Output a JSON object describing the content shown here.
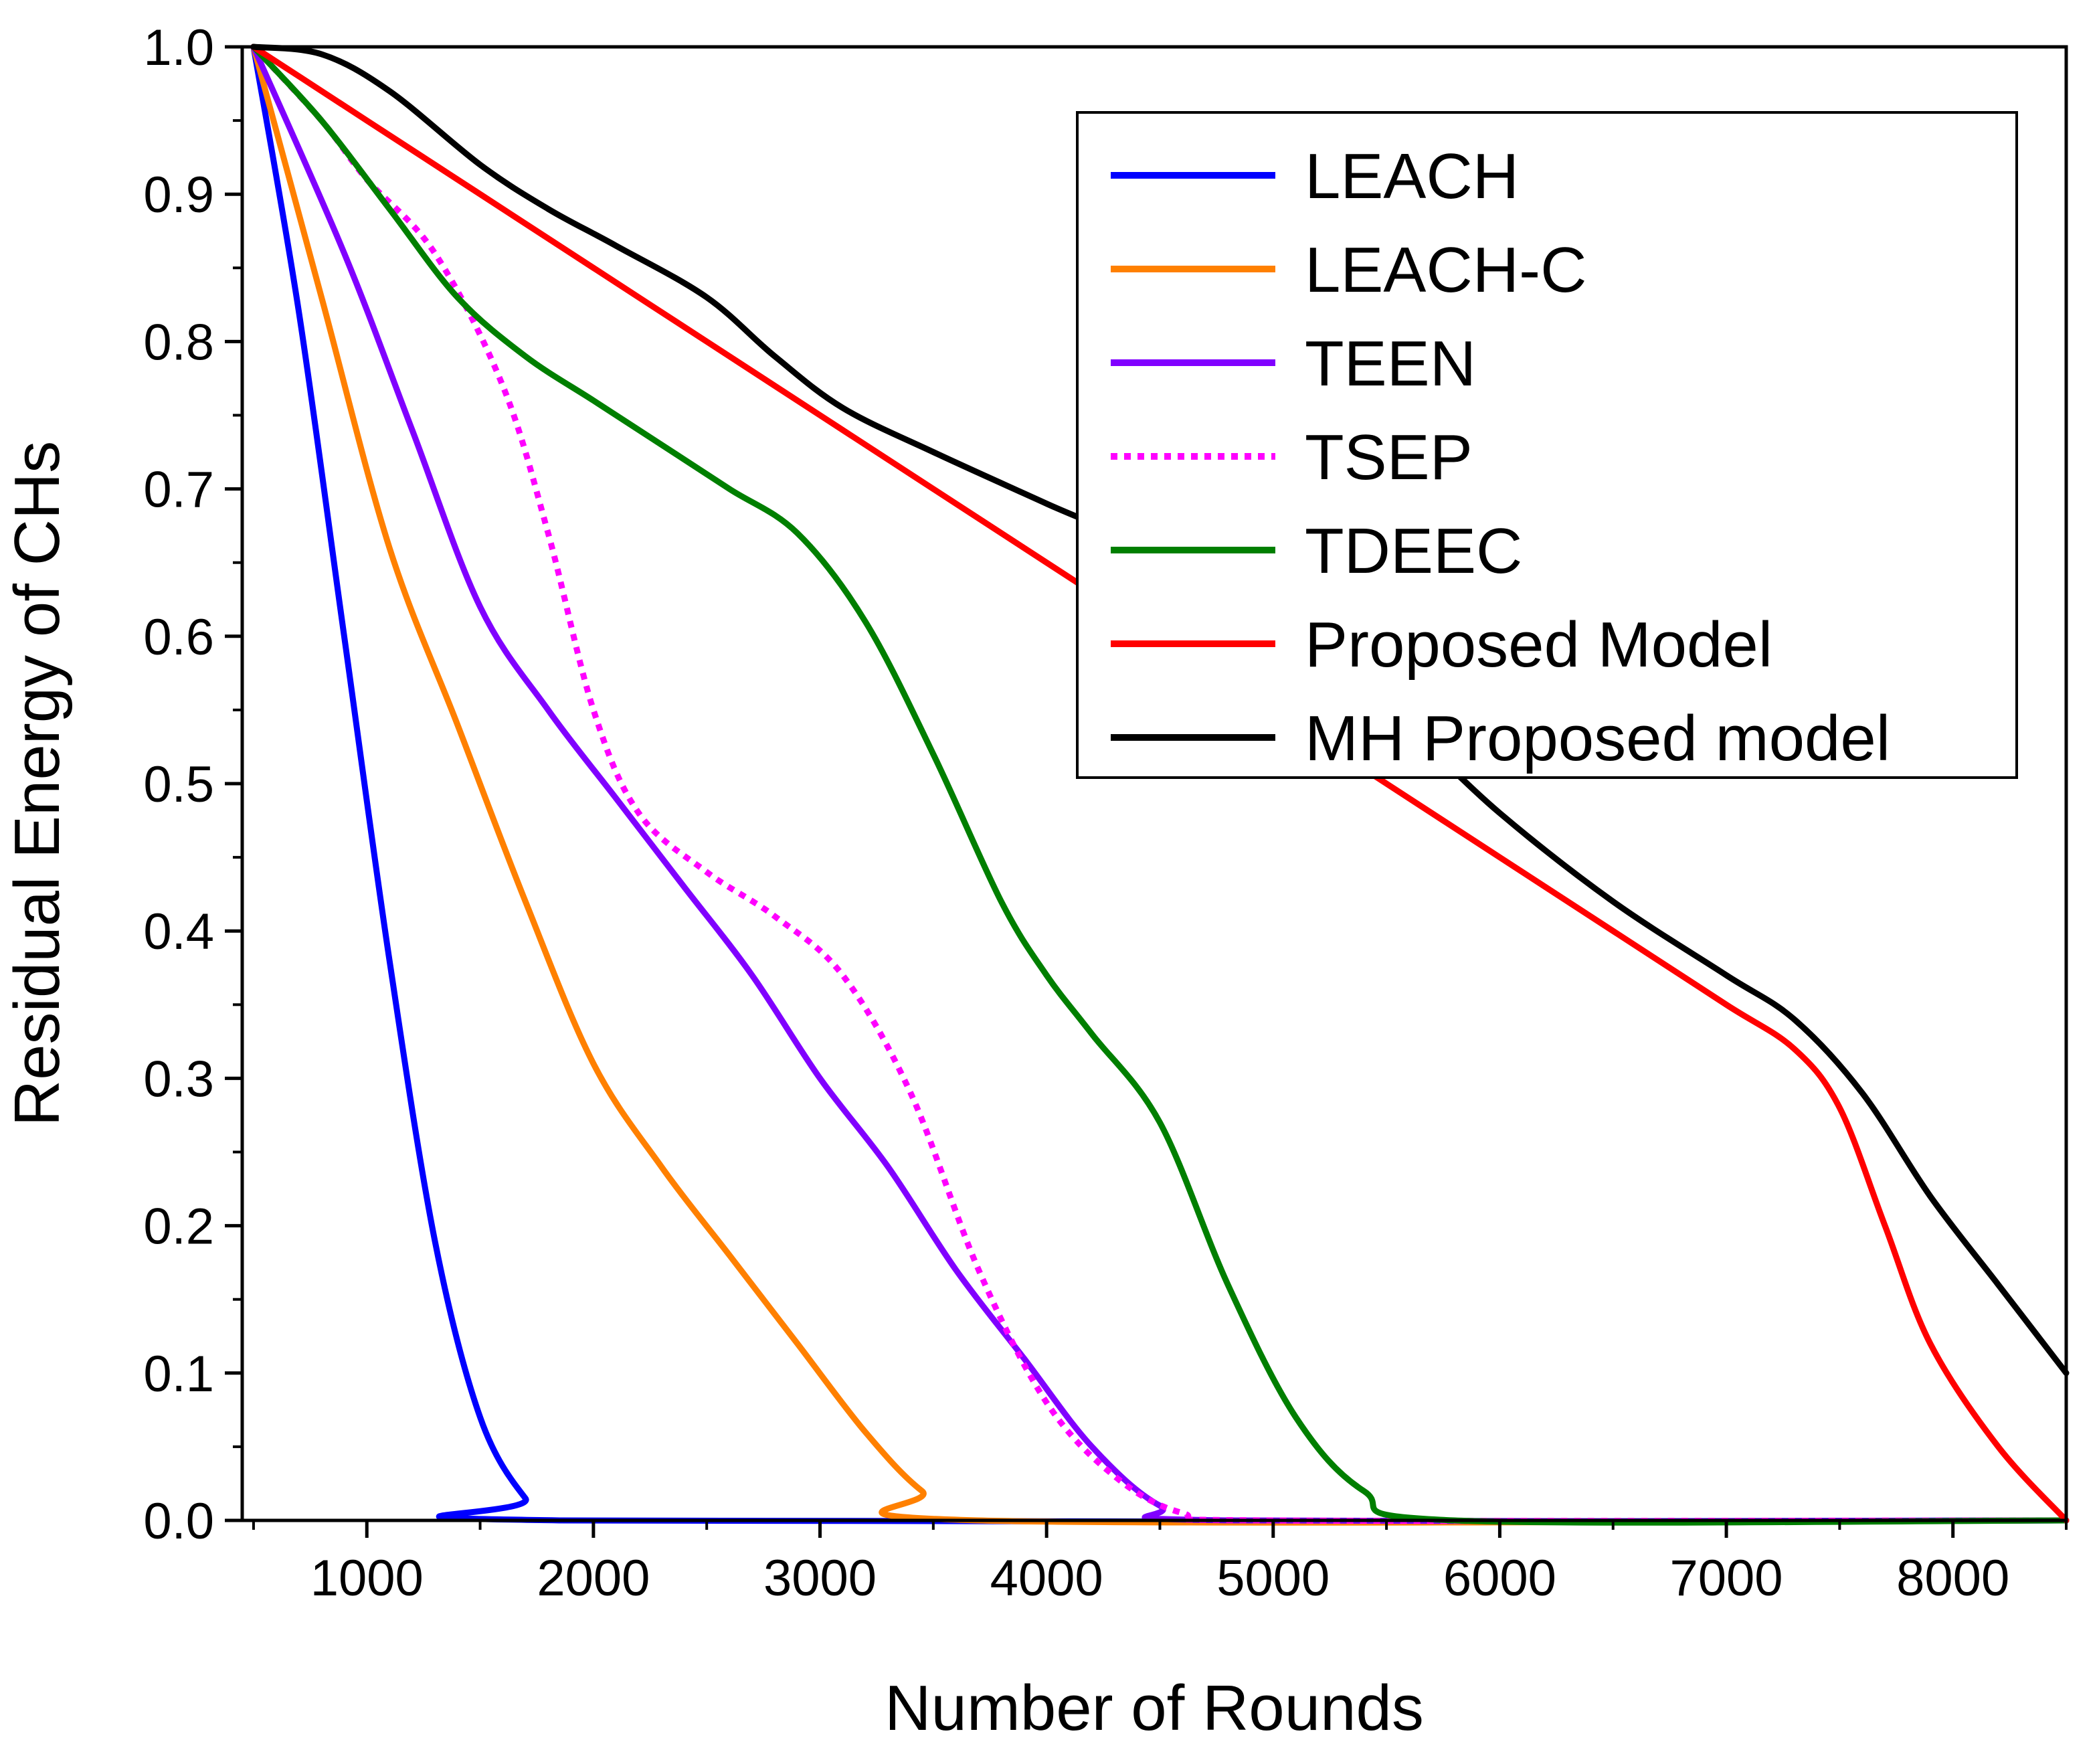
{
  "chart_data": {
    "type": "line",
    "title": "",
    "xlabel": "Number of Rounds",
    "ylabel": "Residual Energy of CHs",
    "xlim": [
      450,
      8500
    ],
    "ylim": [
      0.0,
      1.0
    ],
    "x_ticks": [
      1000,
      2000,
      3000,
      4000,
      5000,
      6000,
      7000,
      8000
    ],
    "x_tick_labels": [
      "1000",
      "2000",
      "3000",
      "4000",
      "5000",
      "6000",
      "7000",
      "8000"
    ],
    "y_ticks": [
      0.0,
      0.1,
      0.2,
      0.3,
      0.4,
      0.5,
      0.6,
      0.7,
      0.8,
      0.9,
      1.0
    ],
    "y_tick_labels": [
      "0.0",
      "0.1",
      "0.2",
      "0.3",
      "0.4",
      "0.5",
      "0.6",
      "0.7",
      "0.8",
      "0.9",
      "1.0"
    ],
    "grid": false,
    "legend_position": "top-right",
    "series": [
      {
        "name": "LEACH",
        "color": "#0000ff",
        "style": "solid",
        "points": [
          [
            500,
            1.0
          ],
          [
            700,
            0.82
          ],
          [
            900,
            0.6
          ],
          [
            1100,
            0.38
          ],
          [
            1300,
            0.19
          ],
          [
            1500,
            0.07
          ],
          [
            1700,
            0.015
          ],
          [
            1850,
            0.0
          ],
          [
            8500,
            0.0
          ]
        ]
      },
      {
        "name": "LEACH-C",
        "color": "#ff8000",
        "style": "solid",
        "points": [
          [
            500,
            1.0
          ],
          [
            800,
            0.83
          ],
          [
            1100,
            0.66
          ],
          [
            1400,
            0.54
          ],
          [
            1700,
            0.42
          ],
          [
            2000,
            0.31
          ],
          [
            2300,
            0.24
          ],
          [
            2600,
            0.18
          ],
          [
            2900,
            0.12
          ],
          [
            3200,
            0.06
          ],
          [
            3450,
            0.02
          ],
          [
            3700,
            0.0
          ],
          [
            8500,
            0.0
          ]
        ]
      },
      {
        "name": "TEEN",
        "color": "#8000ff",
        "style": "solid",
        "points": [
          [
            500,
            1.0
          ],
          [
            900,
            0.86
          ],
          [
            1200,
            0.74
          ],
          [
            1500,
            0.62
          ],
          [
            1800,
            0.55
          ],
          [
            2100,
            0.49
          ],
          [
            2400,
            0.43
          ],
          [
            2700,
            0.37
          ],
          [
            3000,
            0.3
          ],
          [
            3300,
            0.24
          ],
          [
            3600,
            0.17
          ],
          [
            3900,
            0.11
          ],
          [
            4200,
            0.05
          ],
          [
            4500,
            0.01
          ],
          [
            4800,
            0.0
          ],
          [
            8500,
            0.0
          ]
        ]
      },
      {
        "name": "TSEP",
        "color": "#ff00ff",
        "style": "dotted",
        "points": [
          [
            500,
            1.0
          ],
          [
            800,
            0.95
          ],
          [
            1000,
            0.91
          ],
          [
            1300,
            0.86
          ],
          [
            1600,
            0.77
          ],
          [
            1800,
            0.67
          ],
          [
            2000,
            0.55
          ],
          [
            2200,
            0.48
          ],
          [
            2500,
            0.44
          ],
          [
            2800,
            0.41
          ],
          [
            3100,
            0.37
          ],
          [
            3400,
            0.29
          ],
          [
            3700,
            0.17
          ],
          [
            4000,
            0.08
          ],
          [
            4300,
            0.03
          ],
          [
            4600,
            0.005
          ],
          [
            5000,
            0.0
          ],
          [
            8500,
            0.0
          ]
        ]
      },
      {
        "name": "TDEEC",
        "color": "#007f00",
        "style": "solid",
        "points": [
          [
            500,
            1.0
          ],
          [
            800,
            0.95
          ],
          [
            1100,
            0.89
          ],
          [
            1400,
            0.83
          ],
          [
            1700,
            0.79
          ],
          [
            2000,
            0.76
          ],
          [
            2300,
            0.73
          ],
          [
            2600,
            0.7
          ],
          [
            2900,
            0.67
          ],
          [
            3200,
            0.61
          ],
          [
            3500,
            0.52
          ],
          [
            3800,
            0.42
          ],
          [
            4000,
            0.37
          ],
          [
            4200,
            0.33
          ],
          [
            4500,
            0.27
          ],
          [
            4800,
            0.16
          ],
          [
            5100,
            0.07
          ],
          [
            5400,
            0.02
          ],
          [
            5800,
            0.0
          ],
          [
            8500,
            0.0
          ]
        ]
      },
      {
        "name": "Proposed Model",
        "color": "#ff0000",
        "style": "solid",
        "points": [
          [
            500,
            1.0
          ],
          [
            700,
            0.98
          ],
          [
            1000,
            0.95
          ],
          [
            1500,
            0.9
          ],
          [
            2000,
            0.85
          ],
          [
            2500,
            0.8
          ],
          [
            3000,
            0.75
          ],
          [
            3500,
            0.7
          ],
          [
            4000,
            0.65
          ],
          [
            4500,
            0.6
          ],
          [
            5000,
            0.55
          ],
          [
            5500,
            0.5
          ],
          [
            6000,
            0.45
          ],
          [
            6500,
            0.4
          ],
          [
            7000,
            0.35
          ],
          [
            7300,
            0.32
          ],
          [
            7500,
            0.28
          ],
          [
            7700,
            0.2
          ],
          [
            7900,
            0.12
          ],
          [
            8200,
            0.05
          ],
          [
            8500,
            0.0
          ]
        ]
      },
      {
        "name": "MH Proposed model",
        "color": "#000000",
        "style": "solid",
        "points": [
          [
            500,
            1.0
          ],
          [
            800,
            0.995
          ],
          [
            1100,
            0.97
          ],
          [
            1500,
            0.92
          ],
          [
            1800,
            0.89
          ],
          [
            2100,
            0.865
          ],
          [
            2500,
            0.83
          ],
          [
            2800,
            0.79
          ],
          [
            3100,
            0.755
          ],
          [
            3500,
            0.725
          ],
          [
            4000,
            0.69
          ],
          [
            4500,
            0.655
          ],
          [
            5000,
            0.6
          ],
          [
            5500,
            0.55
          ],
          [
            6000,
            0.48
          ],
          [
            6500,
            0.42
          ],
          [
            7000,
            0.37
          ],
          [
            7300,
            0.34
          ],
          [
            7600,
            0.29
          ],
          [
            7900,
            0.22
          ],
          [
            8200,
            0.16
          ],
          [
            8500,
            0.1
          ]
        ]
      }
    ]
  }
}
